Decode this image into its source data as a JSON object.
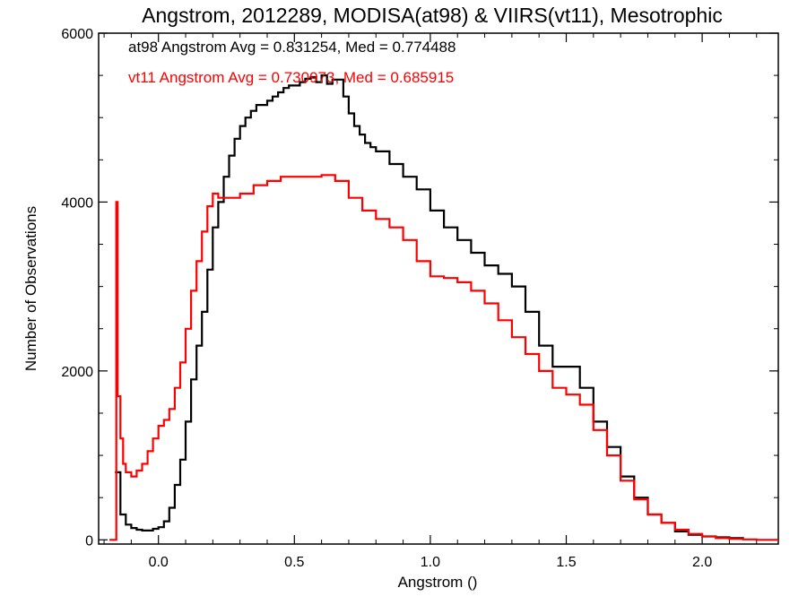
{
  "chart_data": {
    "type": "line",
    "title": "Angstrom, 2012289, MODISA(at98) & VIIRS(vt11), Mesotrophic",
    "xlabel": "Angstrom ()",
    "ylabel": "Number of Observations",
    "xlim": [
      -0.22,
      2.28
    ],
    "ylim": [
      -50,
      6000
    ],
    "x_ticks": [
      0.0,
      0.5,
      1.0,
      1.5,
      2.0
    ],
    "x_tick_labels": [
      "0.0",
      "0.5",
      "1.0",
      "1.5",
      "2.0"
    ],
    "y_ticks": [
      0,
      2000,
      4000,
      6000
    ],
    "y_tick_labels": [
      "0",
      "2000",
      "4000",
      "6000"
    ],
    "grid": false,
    "annotations": [
      {
        "text": "at98 Angstrom Avg = 0.831254, Med = 0.774488",
        "color": "#000000"
      },
      {
        "text": "vt11 Angstrom Avg = 0.730973, Med = 0.685915",
        "color": "#ff0000"
      }
    ],
    "series": [
      {
        "color": "#000000",
        "x": [
          -0.16,
          -0.14,
          -0.12,
          -0.1,
          -0.08,
          -0.06,
          -0.04,
          -0.02,
          0.0,
          0.02,
          0.04,
          0.06,
          0.08,
          0.1,
          0.12,
          0.14,
          0.16,
          0.18,
          0.2,
          0.22,
          0.24,
          0.26,
          0.28,
          0.3,
          0.32,
          0.34,
          0.36,
          0.38,
          0.4,
          0.42,
          0.44,
          0.46,
          0.48,
          0.5,
          0.52,
          0.54,
          0.56,
          0.58,
          0.6,
          0.62,
          0.64,
          0.66,
          0.68,
          0.7,
          0.72,
          0.74,
          0.76,
          0.78,
          0.8,
          0.85,
          0.9,
          0.95,
          1.0,
          1.05,
          1.1,
          1.15,
          1.2,
          1.25,
          1.3,
          1.35,
          1.4,
          1.45,
          1.5,
          1.55,
          1.6,
          1.65,
          1.7,
          1.75,
          1.8,
          1.85,
          1.9,
          1.95,
          2.0,
          2.05,
          2.1,
          2.15
        ],
        "y": [
          800,
          300,
          180,
          140,
          120,
          110,
          110,
          130,
          150,
          220,
          380,
          650,
          950,
          1400,
          1900,
          2300,
          2700,
          3200,
          3700,
          4000,
          4300,
          4550,
          4750,
          4900,
          5000,
          5080,
          5150,
          5150,
          5200,
          5250,
          5300,
          5350,
          5380,
          5380,
          5420,
          5460,
          5480,
          5420,
          5500,
          5400,
          5450,
          5450,
          5250,
          5050,
          4900,
          4800,
          4700,
          4650,
          4600,
          4450,
          4300,
          4150,
          3900,
          3700,
          3550,
          3400,
          3250,
          3150,
          3000,
          2700,
          2300,
          2050,
          2050,
          1800,
          1400,
          1100,
          750,
          500,
          300,
          200,
          100,
          60,
          40,
          30,
          20,
          10
        ]
      },
      {
        "color": "#ff0000",
        "x": [
          -0.18,
          -0.16,
          -0.155,
          -0.15,
          -0.14,
          -0.13,
          -0.12,
          -0.1,
          -0.08,
          -0.06,
          -0.04,
          -0.02,
          0.0,
          0.02,
          0.04,
          0.06,
          0.08,
          0.1,
          0.12,
          0.14,
          0.16,
          0.18,
          0.2,
          0.22,
          0.25,
          0.3,
          0.35,
          0.4,
          0.45,
          0.5,
          0.55,
          0.6,
          0.65,
          0.7,
          0.75,
          0.8,
          0.85,
          0.9,
          0.95,
          1.0,
          1.05,
          1.1,
          1.15,
          1.2,
          1.25,
          1.3,
          1.35,
          1.4,
          1.45,
          1.5,
          1.55,
          1.6,
          1.65,
          1.7,
          1.75,
          1.8,
          1.85,
          1.9,
          1.95,
          2.0,
          2.05,
          2.1,
          2.15,
          2.2,
          2.28
        ],
        "y": [
          0,
          0,
          4000,
          1700,
          1200,
          900,
          800,
          750,
          820,
          900,
          1050,
          1200,
          1350,
          1420,
          1550,
          1800,
          2100,
          2500,
          2950,
          3300,
          3650,
          3950,
          4100,
          4050,
          4050,
          4100,
          4200,
          4250,
          4300,
          4300,
          4300,
          4320,
          4250,
          4050,
          3900,
          3800,
          3700,
          3550,
          3300,
          3120,
          3100,
          3050,
          2950,
          2800,
          2600,
          2400,
          2200,
          2000,
          1800,
          1720,
          1600,
          1300,
          1000,
          700,
          480,
          300,
          200,
          120,
          70,
          40,
          20,
          10,
          5,
          0,
          0
        ]
      }
    ]
  }
}
